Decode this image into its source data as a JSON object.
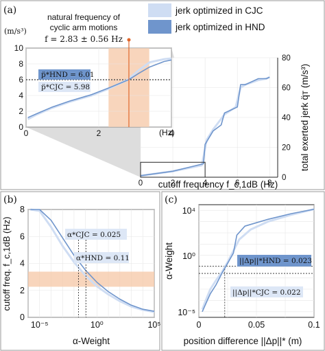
{
  "panel_a": {
    "label": "(a)",
    "annotation_title_1": "natural frequency of",
    "annotation_title_2": "cyclic arm motions",
    "annotation_formula": "f = 2.83 ± 0.56 Hz",
    "legend": [
      {
        "name": "jerk optimized in CJC",
        "color": "#cfddf3"
      },
      {
        "name": "jerk optimized in HND",
        "color": "#6f95cc"
      }
    ],
    "left_unit": "(m/s³)",
    "right_ylabel": "total exerted jerk q̈ᴛ (m/s³)",
    "xlabel": "cutoff frequency f_c,1dB (Hz)",
    "box_hnd": "p̈*HND = 6.01",
    "box_cjc": "p̈*CJC = 5.98",
    "inset_hz": "(Hz)"
  },
  "panel_b": {
    "label": "(b)",
    "ylabel": "cutoff freq. f_c,1dB (Hz)",
    "xlabel": "α-Weight",
    "box_cjc": "α*CJC = 0.025",
    "box_hnd": "α*HND = 0.11"
  },
  "panel_c": {
    "label": "(c)",
    "ylabel": "α-Weight",
    "xlabel": "position difference ||Δp||* (m)",
    "box_hnd": "||Δp||*HND = 0.023",
    "box_cjc": "||Δp||*CJC = 0.022"
  },
  "chart_data": [
    {
      "type": "line",
      "panel": "a-main",
      "xlabel": "cutoff frequency f_c,1dB (Hz)",
      "ylabel": "total exerted jerk (m/s³)",
      "xlim": [
        0,
        8.5
      ],
      "ylim": [
        0,
        80
      ],
      "xticks": [
        0,
        2,
        4,
        6,
        8
      ],
      "yticks": [
        0,
        20,
        40,
        60,
        80
      ],
      "series": [
        {
          "name": "jerk optimized in CJC",
          "color": "#cfddf3",
          "x": [
            0,
            2,
            3.8,
            4.1,
            4.5,
            5.2,
            5.9,
            6.2,
            6.5,
            7.3,
            7.8,
            8
          ],
          "y": [
            1,
            4,
            8,
            25,
            32,
            42,
            47,
            60,
            62,
            65,
            66,
            67
          ]
        },
        {
          "name": "jerk optimized in HND",
          "color": "#6f95cc",
          "x": [
            0,
            2,
            3.9,
            4.0,
            4.5,
            5.0,
            5.2,
            6.0,
            6.2,
            6.5,
            7.3,
            7.8,
            8
          ],
          "y": [
            1,
            4,
            9,
            22,
            31,
            35,
            43,
            47,
            62,
            62,
            66,
            66,
            67
          ]
        }
      ]
    },
    {
      "type": "line",
      "panel": "a-inset",
      "xlim": [
        0,
        4
      ],
      "ylim": [
        0,
        10
      ],
      "xticks": [
        0,
        2,
        4
      ],
      "yticks": [
        0,
        2,
        4,
        6,
        8,
        10
      ],
      "band_x": [
        2.27,
        3.39
      ],
      "marker_x": 2.83,
      "hlines": [
        6.01,
        5.98
      ],
      "series": [
        {
          "name": "jerk optimized in CJC",
          "color": "#cfddf3",
          "x": [
            0.05,
            0.3,
            0.7,
            1.2,
            1.8,
            2.3,
            2.8,
            3.1,
            3.4,
            3.8,
            4.0
          ],
          "y": [
            1.0,
            1.6,
            2.4,
            3.2,
            4.0,
            4.9,
            6.0,
            7.2,
            8.2,
            8.6,
            8.7
          ]
        },
        {
          "name": "jerk optimized in HND",
          "color": "#6f95cc",
          "x": [
            0.05,
            0.3,
            0.7,
            1.2,
            1.8,
            2.3,
            2.83,
            3.1,
            3.4,
            3.8,
            4.0
          ],
          "y": [
            1.2,
            1.7,
            2.5,
            3.3,
            4.1,
            5.0,
            6.01,
            6.8,
            7.6,
            8.3,
            8.5
          ]
        }
      ]
    },
    {
      "type": "line",
      "panel": "b",
      "xlabel": "α-Weight",
      "ylabel": "cutoff freq. f_c,1dB (Hz)",
      "xscale": "log",
      "xlim": [
        -6,
        5
      ],
      "ylim": [
        0,
        8
      ],
      "xticks": [
        -5,
        0,
        5
      ],
      "xticklabels": [
        "10⁻⁵",
        "10⁰",
        "10⁵"
      ],
      "yticks": [
        0,
        2,
        4,
        6,
        8
      ],
      "band_y": [
        2.27,
        3.39
      ],
      "vlines": [
        0.025,
        0.11
      ],
      "series": [
        {
          "name": "jerk optimized in CJC",
          "color": "#cfddf3",
          "log10x": [
            -5.8,
            -5,
            -4,
            -3,
            -2,
            -1,
            0,
            1,
            2,
            3,
            4,
            5
          ],
          "y": [
            8.8,
            7.9,
            6.7,
            5.3,
            4.1,
            3.1,
            2.3,
            1.7,
            1.2,
            0.8,
            0.55,
            0.4
          ]
        },
        {
          "name": "jerk optimized in HND",
          "color": "#6f95cc",
          "log10x": [
            -5.8,
            -5,
            -4,
            -3,
            -2,
            -1,
            0,
            1,
            2,
            3,
            4,
            5
          ],
          "y": [
            9.0,
            8.3,
            7.2,
            5.9,
            4.6,
            3.5,
            2.6,
            1.9,
            1.35,
            0.9,
            0.6,
            0.45
          ]
        }
      ]
    },
    {
      "type": "line",
      "panel": "c",
      "xlabel": "position difference ||Δp||* (m)",
      "ylabel": "α-Weight",
      "yscale": "log",
      "xlim": [
        0,
        0.1
      ],
      "ylim": [
        -5.5,
        4.5
      ],
      "xticks": [
        0,
        0.05,
        0.1
      ],
      "yticks": [
        -5,
        0,
        4
      ],
      "yticklabels": [
        "10⁻⁵",
        "10⁰",
        "10⁴"
      ],
      "hlines": [
        0.11,
        0.025
      ],
      "vline_x": 0.0225,
      "series": [
        {
          "name": "jerk optimized in CJC",
          "color": "#cfddf3",
          "x": [
            0.003,
            0.006,
            0.01,
            0.015,
            0.02,
            0.025,
            0.03,
            0.035,
            0.045,
            0.06,
            0.08,
            0.1
          ],
          "log10y": [
            -4.8,
            -4.0,
            -3.0,
            -2.2,
            -1.5,
            -0.6,
            0.4,
            1.4,
            2.3,
            3.0,
            3.6,
            4.1
          ]
        },
        {
          "name": "jerk optimized in HND",
          "color": "#6f95cc",
          "x": [
            0.003,
            0.006,
            0.01,
            0.015,
            0.02,
            0.025,
            0.03,
            0.033,
            0.04,
            0.06,
            0.08,
            0.1
          ],
          "log10y": [
            -5.0,
            -4.3,
            -3.4,
            -2.6,
            -1.6,
            -0.7,
            0.2,
            1.8,
            2.6,
            3.2,
            3.7,
            4.1
          ]
        }
      ]
    }
  ]
}
